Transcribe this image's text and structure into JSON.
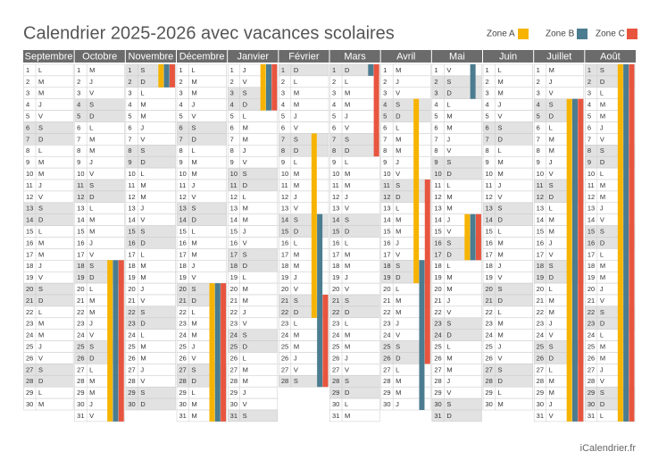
{
  "title": "Calendrier 2025-2026 avec vacances scolaires",
  "footer": "iCalendrier.fr",
  "zones": [
    {
      "name": "Zone A",
      "color": "#f6b400"
    },
    {
      "name": "Zone B",
      "color": "#4b7c8f"
    },
    {
      "name": "Zone C",
      "color": "#e8553f"
    }
  ],
  "months": [
    {
      "name": "Septembre",
      "days": [
        1,
        2,
        3,
        4,
        5,
        6,
        7,
        8,
        9,
        10,
        11,
        12,
        13,
        14,
        15,
        16,
        17,
        18,
        19,
        20,
        21,
        22,
        23,
        24,
        25,
        26,
        27,
        28,
        29,
        30
      ],
      "weekdays": [
        "L",
        "M",
        "M",
        "J",
        "V",
        "S",
        "D",
        "L",
        "M",
        "M",
        "J",
        "V",
        "S",
        "D",
        "L",
        "M",
        "M",
        "J",
        "V",
        "S",
        "D",
        "L",
        "M",
        "M",
        "J",
        "V",
        "S",
        "D",
        "L",
        "M"
      ],
      "bars": []
    },
    {
      "name": "Octobre",
      "days": [
        1,
        2,
        3,
        4,
        5,
        6,
        7,
        8,
        9,
        10,
        11,
        12,
        13,
        14,
        15,
        16,
        17,
        18,
        19,
        20,
        21,
        22,
        23,
        24,
        25,
        26,
        27,
        28,
        29,
        30,
        31
      ],
      "weekdays": [
        "M",
        "J",
        "V",
        "S",
        "D",
        "L",
        "M",
        "M",
        "J",
        "V",
        "S",
        "D",
        "L",
        "M",
        "M",
        "J",
        "V",
        "S",
        "D",
        "L",
        "M",
        "M",
        "J",
        "V",
        "S",
        "D",
        "L",
        "M",
        "M",
        "J",
        "V"
      ],
      "bars": [
        [
          0,
          18,
          31
        ],
        [
          1,
          18,
          31
        ],
        [
          2,
          18,
          31
        ]
      ]
    },
    {
      "name": "Novembre",
      "days": [
        1,
        2,
        3,
        4,
        5,
        6,
        7,
        8,
        9,
        10,
        11,
        12,
        13,
        14,
        15,
        16,
        17,
        18,
        19,
        20,
        21,
        22,
        23,
        24,
        25,
        26,
        27,
        28,
        29,
        30
      ],
      "weekdays": [
        "S",
        "D",
        "L",
        "M",
        "M",
        "J",
        "V",
        "S",
        "D",
        "L",
        "M",
        "M",
        "J",
        "V",
        "S",
        "D",
        "L",
        "M",
        "M",
        "J",
        "V",
        "S",
        "D",
        "L",
        "M",
        "M",
        "J",
        "V",
        "S",
        "D"
      ],
      "bars": [
        [
          0,
          1,
          2
        ],
        [
          1,
          1,
          2
        ],
        [
          2,
          1,
          2
        ]
      ]
    },
    {
      "name": "Décembre",
      "days": [
        1,
        2,
        3,
        4,
        5,
        6,
        7,
        8,
        9,
        10,
        11,
        12,
        13,
        14,
        15,
        16,
        17,
        18,
        19,
        20,
        21,
        22,
        23,
        24,
        25,
        26,
        27,
        28,
        29,
        30,
        31
      ],
      "weekdays": [
        "L",
        "M",
        "M",
        "J",
        "V",
        "S",
        "D",
        "L",
        "M",
        "M",
        "J",
        "V",
        "S",
        "D",
        "L",
        "M",
        "M",
        "J",
        "V",
        "S",
        "D",
        "L",
        "M",
        "M",
        "J",
        "V",
        "S",
        "D",
        "L",
        "M",
        "M"
      ],
      "bars": [
        [
          0,
          20,
          31
        ],
        [
          1,
          20,
          31
        ],
        [
          2,
          20,
          31
        ]
      ]
    },
    {
      "name": "Janvier",
      "days": [
        1,
        2,
        3,
        4,
        5,
        6,
        7,
        8,
        9,
        10,
        11,
        12,
        13,
        14,
        15,
        16,
        17,
        18,
        19,
        20,
        21,
        22,
        23,
        24,
        25,
        26,
        27,
        28,
        29,
        30,
        31
      ],
      "weekdays": [
        "J",
        "V",
        "S",
        "D",
        "L",
        "M",
        "M",
        "J",
        "V",
        "S",
        "D",
        "L",
        "M",
        "M",
        "J",
        "V",
        "S",
        "D",
        "L",
        "M",
        "M",
        "J",
        "V",
        "S",
        "D",
        "L",
        "M",
        "M",
        "J",
        "V",
        "S"
      ],
      "bars": [
        [
          0,
          1,
          4
        ],
        [
          1,
          1,
          4
        ],
        [
          2,
          1,
          4
        ]
      ]
    },
    {
      "name": "Février",
      "days": [
        1,
        2,
        3,
        4,
        5,
        6,
        7,
        8,
        9,
        10,
        11,
        12,
        13,
        14,
        15,
        16,
        17,
        18,
        19,
        20,
        21,
        22,
        23,
        24,
        25,
        26,
        27,
        28
      ],
      "weekdays": [
        "D",
        "L",
        "M",
        "M",
        "J",
        "V",
        "S",
        "D",
        "L",
        "M",
        "M",
        "J",
        "V",
        "S",
        "D",
        "L",
        "M",
        "M",
        "J",
        "V",
        "S",
        "D",
        "L",
        "M",
        "M",
        "J",
        "V",
        "S"
      ],
      "bars": [
        [
          0,
          7,
          22
        ],
        [
          1,
          14,
          28
        ],
        [
          2,
          21,
          28
        ]
      ]
    },
    {
      "name": "Mars",
      "days": [
        1,
        2,
        3,
        4,
        5,
        6,
        7,
        8,
        9,
        10,
        11,
        12,
        13,
        14,
        15,
        16,
        17,
        18,
        19,
        20,
        21,
        22,
        23,
        24,
        25,
        26,
        27,
        28,
        29,
        30,
        31
      ],
      "weekdays": [
        "D",
        "L",
        "M",
        "M",
        "J",
        "V",
        "S",
        "D",
        "L",
        "M",
        "M",
        "J",
        "V",
        "S",
        "D",
        "L",
        "M",
        "M",
        "J",
        "V",
        "S",
        "D",
        "L",
        "M",
        "M",
        "J",
        "V",
        "S",
        "D",
        "L",
        "M"
      ],
      "bars": [
        [
          1,
          1,
          1
        ],
        [
          2,
          1,
          8
        ]
      ]
    },
    {
      "name": "Avril",
      "days": [
        1,
        2,
        3,
        4,
        5,
        6,
        7,
        8,
        9,
        10,
        11,
        12,
        13,
        14,
        15,
        16,
        17,
        18,
        19,
        20,
        21,
        22,
        23,
        24,
        25,
        26,
        27,
        28,
        29,
        30
      ],
      "weekdays": [
        "M",
        "J",
        "V",
        "S",
        "D",
        "L",
        "M",
        "M",
        "J",
        "V",
        "S",
        "D",
        "L",
        "M",
        "M",
        "J",
        "V",
        "S",
        "D",
        "L",
        "M",
        "M",
        "J",
        "V",
        "S",
        "D",
        "L",
        "M",
        "M",
        "J"
      ],
      "bars": [
        [
          0,
          4,
          19
        ],
        [
          1,
          18,
          30
        ],
        [
          2,
          11,
          26
        ]
      ]
    },
    {
      "name": "Mai",
      "days": [
        1,
        2,
        3,
        4,
        5,
        6,
        7,
        8,
        9,
        10,
        11,
        12,
        13,
        14,
        15,
        16,
        17,
        18,
        19,
        20,
        21,
        22,
        23,
        24,
        25,
        26,
        27,
        28,
        29,
        30,
        31
      ],
      "weekdays": [
        "V",
        "S",
        "D",
        "L",
        "M",
        "M",
        "J",
        "V",
        "S",
        "D",
        "L",
        "M",
        "M",
        "J",
        "V",
        "S",
        "D",
        "L",
        "M",
        "M",
        "J",
        "V",
        "S",
        "D",
        "L",
        "M",
        "M",
        "J",
        "V",
        "S",
        "D"
      ],
      "bars": [
        [
          1,
          1,
          3
        ],
        [
          0,
          14,
          17
        ],
        [
          1,
          14,
          17
        ],
        [
          2,
          14,
          17
        ]
      ]
    },
    {
      "name": "Juin",
      "days": [
        1,
        2,
        3,
        4,
        5,
        6,
        7,
        8,
        9,
        10,
        11,
        12,
        13,
        14,
        15,
        16,
        17,
        18,
        19,
        20,
        21,
        22,
        23,
        24,
        25,
        26,
        27,
        28,
        29,
        30
      ],
      "weekdays": [
        "L",
        "M",
        "M",
        "J",
        "V",
        "S",
        "D",
        "L",
        "M",
        "M",
        "J",
        "V",
        "S",
        "D",
        "L",
        "M",
        "M",
        "J",
        "V",
        "S",
        "D",
        "L",
        "M",
        "M",
        "J",
        "V",
        "S",
        "D",
        "L",
        "M"
      ],
      "bars": []
    },
    {
      "name": "Juillet",
      "days": [
        1,
        2,
        3,
        4,
        5,
        6,
        7,
        8,
        9,
        10,
        11,
        12,
        13,
        14,
        15,
        16,
        17,
        18,
        19,
        20,
        21,
        22,
        23,
        24,
        25,
        26,
        27,
        28,
        29,
        30,
        31
      ],
      "weekdays": [
        "M",
        "J",
        "V",
        "S",
        "D",
        "L",
        "M",
        "M",
        "J",
        "V",
        "S",
        "D",
        "L",
        "M",
        "M",
        "J",
        "V",
        "S",
        "D",
        "L",
        "M",
        "M",
        "J",
        "V",
        "S",
        "D",
        "L",
        "M",
        "M",
        "J",
        "V"
      ],
      "bars": [
        [
          0,
          4,
          31
        ],
        [
          1,
          4,
          31
        ],
        [
          2,
          4,
          31
        ]
      ]
    },
    {
      "name": "Août",
      "days": [
        1,
        2,
        3,
        4,
        5,
        6,
        7,
        8,
        9,
        10,
        11,
        12,
        13,
        14,
        15,
        16,
        17,
        18,
        19,
        20,
        21,
        22,
        23,
        24,
        25,
        26,
        27,
        28,
        29,
        30,
        31
      ],
      "weekdays": [
        "S",
        "D",
        "L",
        "M",
        "M",
        "J",
        "V",
        "S",
        "D",
        "L",
        "M",
        "M",
        "J",
        "V",
        "S",
        "D",
        "L",
        "M",
        "M",
        "J",
        "V",
        "S",
        "D",
        "L",
        "M",
        "M",
        "J",
        "V",
        "S",
        "D",
        "L"
      ],
      "bars": [
        [
          0,
          1,
          31
        ],
        [
          1,
          1,
          31
        ],
        [
          2,
          1,
          31
        ]
      ]
    }
  ]
}
